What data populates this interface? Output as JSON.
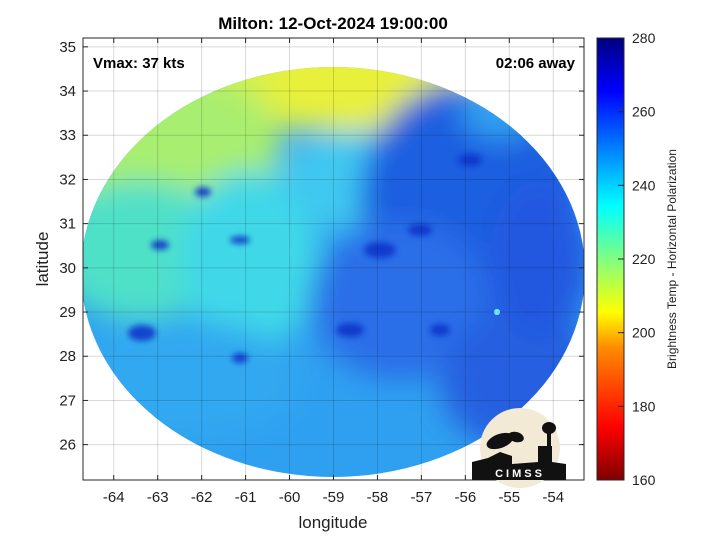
{
  "chart_data": {
    "type": "heatmap",
    "title": "Milton: 12-Oct-2024 19:00:00",
    "xlabel": "longitude",
    "ylabel": "latitude",
    "xlim": [
      -64.7,
      -53.3
    ],
    "ylim": [
      25.2,
      35.2
    ],
    "x_ticks": [
      "-64",
      "-63",
      "-62",
      "-61",
      "-60",
      "-59",
      "-58",
      "-57",
      "-56",
      "-55",
      "-54"
    ],
    "y_ticks": [
      "26",
      "27",
      "28",
      "29",
      "30",
      "31",
      "32",
      "33",
      "34",
      "35"
    ],
    "grid": true,
    "annotations": {
      "left": "Vmax: 37 kts",
      "right": "02:06 away"
    },
    "colorbar": {
      "label": "Brightness Temp - Horizontal Polarization",
      "min": 160,
      "max": 280,
      "ticks": [
        "160",
        "180",
        "200",
        "220",
        "240",
        "260",
        "280"
      ],
      "colormap": "jet"
    },
    "field_summary": {
      "description_values": "Brightness temperature: ~205-220 K in the northwest (yellow-green), ~230-245 K (cyan) in the west and center, ~250-270 K (blue) in the southeast and along a northeast band.",
      "cold_spots_K": 265
    }
  },
  "logo": {
    "text": "CIMSS"
  },
  "colors": {
    "background": "#ffffff",
    "grid": "#d9d9d9",
    "swath_edge_mask": "#ffffff"
  }
}
